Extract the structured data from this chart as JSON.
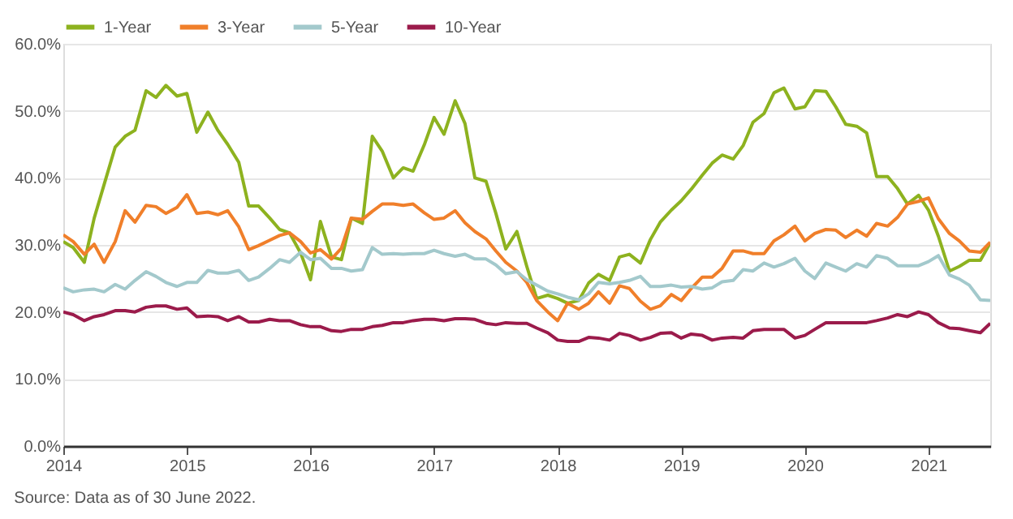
{
  "chart_data": {
    "type": "line",
    "x": [
      2014,
      2014.08,
      2014.17,
      2014.25,
      2014.33,
      2014.42,
      2014.5,
      2014.58,
      2014.67,
      2014.75,
      2014.83,
      2014.92,
      2015,
      2015.08,
      2015.17,
      2015.25,
      2015.33,
      2015.42,
      2015.5,
      2015.58,
      2015.67,
      2015.75,
      2015.83,
      2015.92,
      2016,
      2016.08,
      2016.17,
      2016.25,
      2016.33,
      2016.42,
      2016.5,
      2016.58,
      2016.67,
      2016.75,
      2016.83,
      2016.92,
      2017,
      2017.08,
      2017.17,
      2017.25,
      2017.33,
      2017.42,
      2017.5,
      2017.58,
      2017.67,
      2017.75,
      2017.83,
      2017.92,
      2018,
      2018.08,
      2018.17,
      2018.25,
      2018.33,
      2018.42,
      2018.5,
      2018.58,
      2018.67,
      2018.75,
      2018.83,
      2018.92,
      2019,
      2019.08,
      2019.17,
      2019.25,
      2019.33,
      2019.42,
      2019.5,
      2019.58,
      2019.67,
      2019.75,
      2019.83,
      2019.92,
      2020,
      2020.08,
      2020.17,
      2020.25,
      2020.33,
      2020.42,
      2020.5,
      2020.58,
      2020.67,
      2020.75,
      2020.83,
      2020.92,
      2021,
      2021.08,
      2021.17,
      2021.25,
      2021.33,
      2021.42,
      2021.5
    ],
    "series": [
      {
        "name": "1-Year",
        "color": "#8db21f",
        "values": [
          30.5,
          29.6,
          27.4,
          34,
          39,
          44.6,
          46.2,
          47.1,
          53,
          52,
          53.8,
          52.2,
          52.6,
          46.8,
          49.8,
          47.1,
          45,
          42.3,
          35.8,
          35.8,
          34,
          32.3,
          31.8,
          28.8,
          24.8,
          33.5,
          28.2,
          27.8,
          34,
          33.2,
          46.2,
          44,
          40,
          41.5,
          41,
          44.9,
          49,
          46.5,
          51.5,
          48.1,
          40,
          39.5,
          34.7,
          29.4,
          32,
          26.8,
          22,
          22.5,
          22,
          21.3,
          21.7,
          24.3,
          25.6,
          24.7,
          28.2,
          28.6,
          27.3,
          30.8,
          33.4,
          35.2,
          36.6,
          38.3,
          40.4,
          42.2,
          43.4,
          42.8,
          44.8,
          48.3,
          49.6,
          52.7,
          53.4,
          50.3,
          50.6,
          53,
          52.9,
          50.6,
          48,
          47.7,
          46.7,
          40.2,
          40.2,
          38.4,
          36.1,
          37.4,
          35.2,
          31.3,
          26.1,
          26.8,
          27.7,
          27.7,
          30.3
        ]
      },
      {
        "name": "3-Year",
        "color": "#f07f2a",
        "values": [
          31.5,
          30.5,
          28.6,
          30.1,
          27.4,
          30.5,
          35.1,
          33.4,
          35.9,
          35.7,
          34.7,
          35.6,
          37.5,
          34.7,
          34.9,
          34.5,
          35.1,
          32.7,
          29.3,
          29.9,
          30.7,
          31.4,
          31.8,
          30.5,
          28.8,
          29.3,
          27.9,
          29.5,
          34,
          33.8,
          35,
          36.1,
          36.1,
          35.9,
          36.1,
          34.8,
          33.8,
          34,
          35.1,
          33.3,
          32,
          30.9,
          29.1,
          27.4,
          26.1,
          24.4,
          21.7,
          20,
          18.7,
          21.3,
          20.4,
          21.3,
          23,
          21.3,
          23.9,
          23.5,
          21.6,
          20.4,
          20.9,
          22.6,
          21.7,
          23.5,
          25.2,
          25.2,
          26.5,
          29.1,
          29.1,
          28.7,
          28.7,
          30.6,
          31.5,
          32.8,
          30.6,
          31.7,
          32.3,
          32.2,
          31.1,
          32.2,
          31.3,
          33.2,
          32.8,
          34.1,
          36.1,
          36.5,
          37,
          33.9,
          31.7,
          30.6,
          29.1,
          28.9,
          30.4
        ]
      },
      {
        "name": "5-Year",
        "color": "#a3c9cc",
        "values": [
          23.6,
          23,
          23.3,
          23.4,
          23,
          24.1,
          23.4,
          24.7,
          26,
          25.3,
          24.4,
          23.8,
          24.4,
          24.4,
          26.2,
          25.8,
          25.8,
          26.2,
          24.7,
          25.2,
          26.5,
          27.8,
          27.4,
          28.9,
          27.8,
          28,
          26.5,
          26.5,
          26.1,
          26.3,
          29.6,
          28.6,
          28.7,
          28.6,
          28.7,
          28.7,
          29.2,
          28.7,
          28.3,
          28.6,
          27.9,
          27.9,
          27,
          25.7,
          26,
          24.8,
          24,
          23.1,
          22.7,
          22.2,
          21.8,
          22.7,
          24.4,
          24.2,
          24.4,
          24.7,
          25.3,
          23.8,
          23.8,
          24,
          23.7,
          23.8,
          23.4,
          23.6,
          24.5,
          24.7,
          26.3,
          26.1,
          27.3,
          26.7,
          27.2,
          28,
          26.1,
          25,
          27.3,
          26.7,
          26.1,
          27.2,
          26.7,
          28.4,
          28,
          26.9,
          26.9,
          26.9,
          27.5,
          28.4,
          25.5,
          24.9,
          24,
          21.8,
          21.7
        ]
      },
      {
        "name": "10-Year",
        "color": "#9b1b4b",
        "values": [
          20,
          19.6,
          18.7,
          19.3,
          19.6,
          20.2,
          20.2,
          20,
          20.7,
          20.9,
          20.9,
          20.4,
          20.6,
          19.3,
          19.4,
          19.3,
          18.7,
          19.3,
          18.5,
          18.5,
          18.9,
          18.7,
          18.7,
          18.1,
          17.8,
          17.8,
          17.2,
          17.1,
          17.4,
          17.4,
          17.8,
          18,
          18.4,
          18.4,
          18.7,
          18.9,
          18.9,
          18.7,
          19,
          19,
          18.9,
          18.3,
          18.1,
          18.4,
          18.3,
          18.3,
          17.6,
          16.9,
          15.8,
          15.6,
          15.6,
          16.2,
          16.1,
          15.8,
          16.8,
          16.5,
          15.8,
          16.2,
          16.8,
          16.9,
          16.1,
          16.7,
          16.5,
          15.8,
          16.1,
          16.2,
          16.1,
          17.2,
          17.4,
          17.4,
          17.4,
          16.1,
          16.5,
          17.4,
          18.4,
          18.4,
          18.4,
          18.4,
          18.4,
          18.7,
          19.1,
          19.6,
          19.3,
          20,
          19.6,
          18.4,
          17.6,
          17.5,
          17.2,
          16.9,
          18.3
        ]
      }
    ],
    "xlim": [
      2014,
      2021.5
    ],
    "xticks": [
      2014,
      2015,
      2016,
      2017,
      2018,
      2019,
      2020,
      2021
    ],
    "ylim": [
      0,
      60
    ],
    "yticks": [
      {
        "value": 0,
        "label": "0.0%"
      },
      {
        "value": 10,
        "label": "10.0%"
      },
      {
        "value": 20,
        "label": "20.0%"
      },
      {
        "value": 30,
        "label": "30.0%"
      },
      {
        "value": 40,
        "label": "40.0%"
      },
      {
        "value": 50,
        "label": "50.0%"
      },
      {
        "value": 60,
        "label": "60.0%"
      }
    ],
    "grid": "y",
    "legend": "top left",
    "marker": "none",
    "line_style": "solid",
    "annotations": [
      "Source: Data as of 30 June 2022."
    ]
  }
}
